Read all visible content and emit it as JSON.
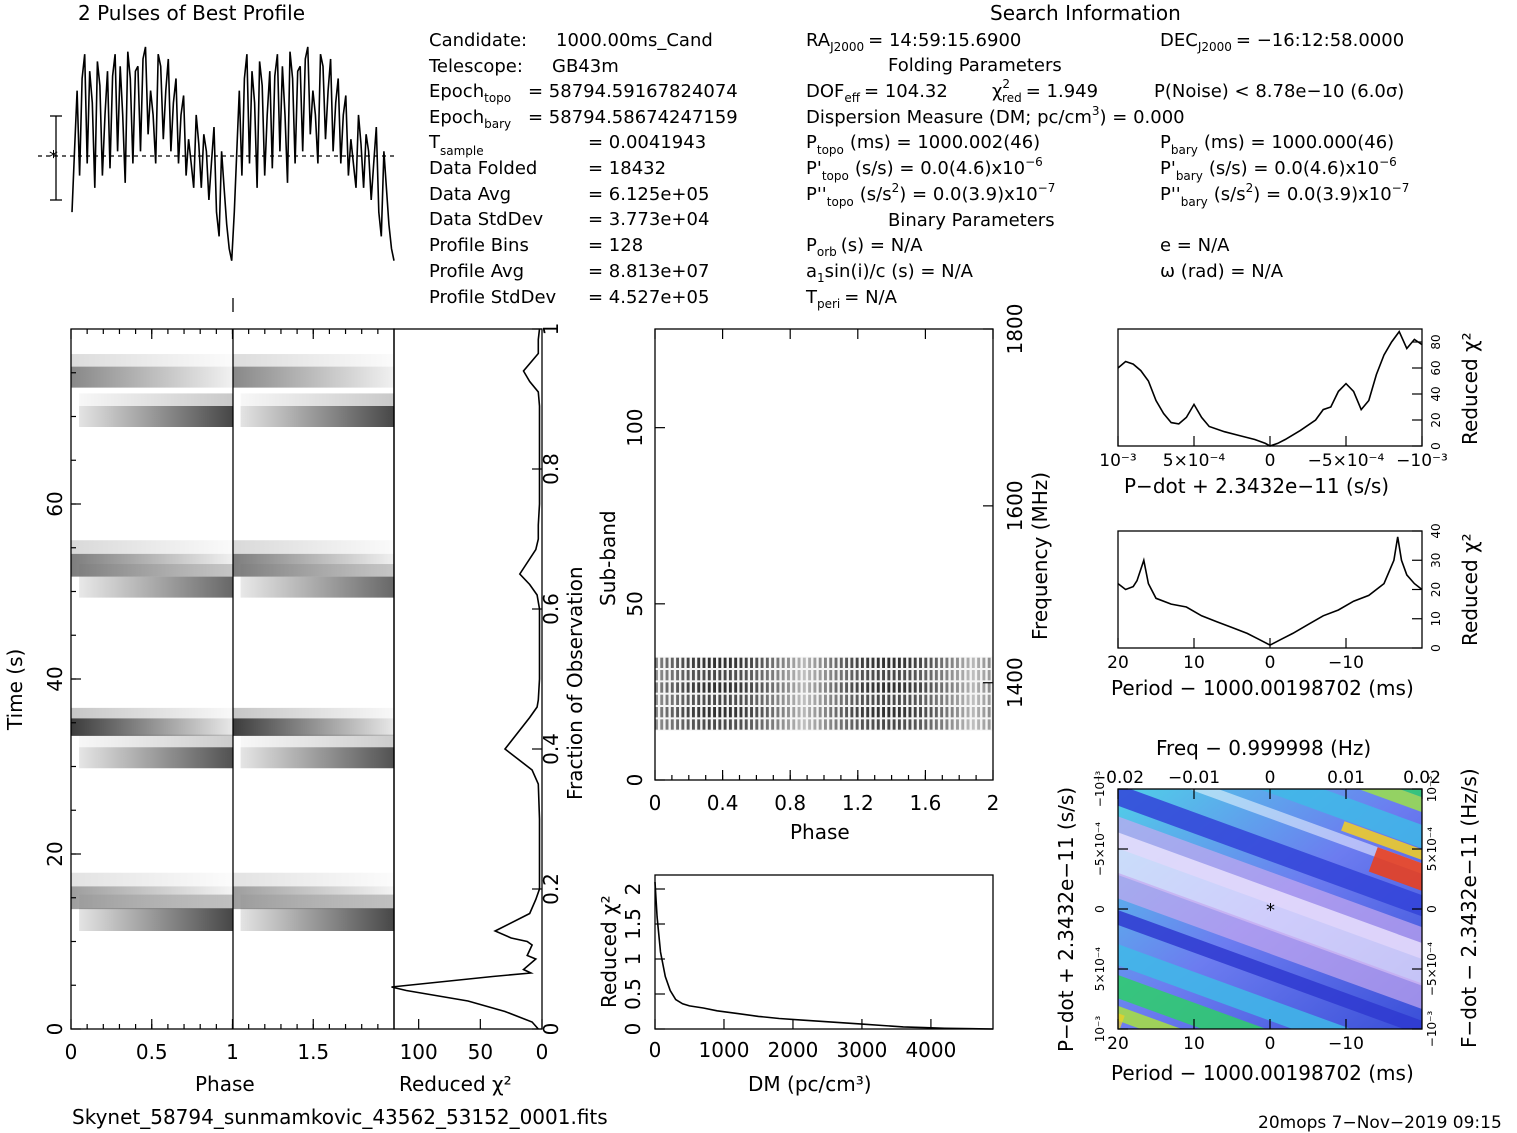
{
  "header": {
    "left_title": "2 Pulses of Best Profile",
    "right_title": "Search Information"
  },
  "info": {
    "candidate_label": "Candidate:",
    "candidate": "1000.00ms_Cand",
    "telescope_label": "Telescope:",
    "telescope": "GB43m",
    "epoch_topo_label": "Epoch",
    "epoch_topo_sub": "topo",
    "epoch_topo": "= 58794.59167824074",
    "epoch_bary_label": "Epoch",
    "epoch_bary_sub": "bary",
    "epoch_bary": "= 58794.58674247159",
    "tsample_label": "T",
    "tsample_sub": "sample",
    "tsample": "=   0.0041943",
    "data_folded_label": "Data Folded",
    "data_folded": "=   18432",
    "data_avg_label": "Data Avg",
    "data_avg": "=   6.125e+05",
    "data_std_label": "Data StdDev",
    "data_std": "=   3.773e+04",
    "prof_bins_label": "Profile Bins",
    "prof_bins": "=   128",
    "prof_avg_label": "Profile Avg",
    "prof_avg": "=   8.813e+07",
    "prof_std_label": "Profile StdDev",
    "prof_std": "=   4.527e+05"
  },
  "search": {
    "ra_label": "RA",
    "ra_sub": "J2000",
    "ra": "= 14:59:15.6900",
    "dec_label": "DEC",
    "dec_sub": "J2000",
    "dec": "= −16:12:58.0000",
    "folding_title": "Folding Parameters",
    "dof_label": "DOF",
    "dof_sub": "eff",
    "dof": "= 104.32",
    "chi_label": "χ",
    "chi_sup": "2",
    "chi_sub": "red",
    "chi": "= 1.949",
    "pnoise": "P(Noise) < 8.78e−10   (6.0σ)",
    "dm_a": "Dispersion Measure (DM; pc/cm",
    "dm_sup": "3",
    "dm_b": ") = 0.000",
    "ptopo_label": "P",
    "ptopo_sub": "topo",
    "ptopo": "(ms) =  1000.002(46)",
    "pbary_label": "P",
    "pbary_sub": "bary",
    "pbary": "(ms) =  1000.000(46)",
    "pdtopo_label": "P'",
    "pdtopo_sub": "topo",
    "pdtopo": "(s/s) = 0.0(4.6)x10",
    "pdtopo_sup": "−6",
    "pdbary_label": "P'",
    "pdbary_sub": "bary",
    "pdbary": "(s/s) = 0.0(4.6)x10",
    "pdbary_sup": "−6",
    "pddtopo_label": "P''",
    "pddtopo_sub": "topo",
    "pddtopo_a": "(s/s",
    "pddtopo_sup1": "2",
    "pddtopo_b": ") = 0.0(3.9)x10",
    "pddtopo_sup": "−7",
    "pddbary_label": "P''",
    "pddbary_sub": "bary",
    "pddbary_a": "(s/s",
    "pddbary_sup1": "2",
    "pddbary_b": ") = 0.0(3.9)x10",
    "pddbary_sup": "−7",
    "binary_title": "Binary Parameters",
    "porb_label": "P",
    "porb_sub": "orb",
    "porb": "(s) = N/A",
    "ecc": "e = N/A",
    "asini": "a",
    "asini_sub": "1",
    "asini_b": "sin(i)/c (s) = N/A",
    "omega": "ω (rad) = N/A",
    "tperi_label": "T",
    "tperi_sub": "peri",
    "tperi": "= N/A"
  },
  "footer": {
    "filename": "Skynet_58794_sunmamkovic_43562_53152_0001.fits",
    "stamp": "20mops   7−Nov−2019 09:15"
  },
  "chart_data": [
    {
      "type": "line",
      "name": "profile",
      "title": "2 Pulses of Best Profile",
      "x_range": [
        0,
        2
      ],
      "n_bins": 128,
      "pulses_per_turn": 8,
      "values_norm_description": "",
      "values": [
        0.3,
        0.55,
        0.8,
        0.45,
        0.85,
        0.95,
        0.5,
        0.88,
        0.75,
        0.4,
        0.92,
        0.82,
        0.45,
        0.7,
        0.88,
        0.48,
        0.86,
        0.95,
        0.55,
        0.9,
        0.7,
        0.42,
        0.96,
        0.85,
        0.5,
        0.88,
        0.9,
        0.55,
        0.93,
        0.98,
        0.62,
        0.8,
        0.7,
        0.5,
        0.95,
        0.9,
        0.6,
        0.8,
        0.93,
        0.55,
        0.75,
        0.85,
        0.5,
        0.7,
        0.78,
        0.45,
        0.6,
        0.5,
        0.4,
        0.7,
        0.58,
        0.4,
        0.62,
        0.55,
        0.35,
        0.5,
        0.65,
        0.3,
        0.2,
        0.55,
        0.4,
        0.25,
        0.15,
        0.1
      ]
    },
    {
      "type": "heatmap",
      "name": "time-phase",
      "xlabel": "Phase",
      "ylabel": "Time (s)",
      "xlim": [
        0,
        2
      ],
      "ylim": [
        0,
        80
      ],
      "xticks": [
        "0",
        "0.5",
        "1",
        "1.5"
      ],
      "yticks": [
        "0",
        "20",
        "40",
        "60"
      ],
      "bands": [
        {
          "t_center": 74.5,
          "phase_start": 0.0,
          "phase_end": 1.0,
          "width": 2.4,
          "darkness": 0.55
        },
        {
          "t_center": 70.0,
          "phase_start": 0.05,
          "phase_end": 1.0,
          "width": 2.4,
          "darkness": 0.85
        },
        {
          "t_center": 53.0,
          "phase_start": 0.0,
          "phase_end": 1.0,
          "width": 2.6,
          "darkness": 0.6
        },
        {
          "t_center": 50.5,
          "phase_start": 0.05,
          "phase_end": 1.0,
          "width": 2.4,
          "darkness": 0.7
        },
        {
          "t_center": 34.5,
          "phase_start": 0.0,
          "phase_end": 1.0,
          "width": 2.0,
          "darkness": 0.9
        },
        {
          "t_center": 31.0,
          "phase_start": 0.05,
          "phase_end": 1.0,
          "width": 2.4,
          "darkness": 0.8
        },
        {
          "t_center": 15.0,
          "phase_start": 0.0,
          "phase_end": 1.0,
          "width": 2.6,
          "darkness": 0.45
        },
        {
          "t_center": 12.5,
          "phase_start": 0.05,
          "phase_end": 1.0,
          "width": 2.6,
          "darkness": 0.85
        }
      ]
    },
    {
      "type": "line",
      "name": "reduced-chi2-vs-fraction",
      "xlabel": "Reduced χ²",
      "ylabel": "Fraction of Observation",
      "xlim": [
        120,
        0
      ],
      "ylim": [
        0,
        1
      ],
      "xticks": [
        "100",
        "50",
        "0"
      ],
      "yticks": [
        "0",
        "0.2",
        "0.4",
        "0.6",
        "0.8",
        "1"
      ],
      "points": [
        [
          2,
          1.0
        ],
        [
          3,
          0.985
        ],
        [
          3,
          0.965
        ],
        [
          15,
          0.94
        ],
        [
          10,
          0.925
        ],
        [
          3,
          0.91
        ],
        [
          2,
          0.89
        ],
        [
          2,
          0.85
        ],
        [
          2,
          0.8
        ],
        [
          2,
          0.75
        ],
        [
          3,
          0.72
        ],
        [
          3,
          0.7
        ],
        [
          5,
          0.685
        ],
        [
          18,
          0.65
        ],
        [
          10,
          0.635
        ],
        [
          4,
          0.62
        ],
        [
          2,
          0.6
        ],
        [
          2,
          0.55
        ],
        [
          2,
          0.5
        ],
        [
          3,
          0.47
        ],
        [
          4,
          0.46
        ],
        [
          10,
          0.445
        ],
        [
          30,
          0.4
        ],
        [
          8,
          0.37
        ],
        [
          3,
          0.35
        ],
        [
          2,
          0.3
        ],
        [
          2,
          0.25
        ],
        [
          2,
          0.2
        ],
        [
          5,
          0.185
        ],
        [
          10,
          0.165
        ],
        [
          38,
          0.14
        ],
        [
          25,
          0.13
        ],
        [
          12,
          0.125
        ],
        [
          8,
          0.12
        ],
        [
          12,
          0.105
        ],
        [
          5,
          0.1
        ],
        [
          15,
          0.085
        ],
        [
          9,
          0.08
        ],
        [
          40,
          0.075
        ],
        [
          122,
          0.06
        ],
        [
          110,
          0.055
        ],
        [
          60,
          0.04
        ],
        [
          30,
          0.025
        ],
        [
          8,
          0.01
        ],
        [
          3,
          0.0
        ]
      ]
    },
    {
      "type": "heatmap",
      "name": "subband-phase",
      "xlabel": "Phase",
      "ylabel": "Sub-band",
      "y2label": "Frequency (MHz)",
      "xlim": [
        0,
        2
      ],
      "ylim": [
        0,
        128
      ],
      "xticks": [
        "0",
        "0.4",
        "0.8",
        "1.2",
        "1.6",
        "2"
      ],
      "yticks": [
        "0",
        "50",
        "100"
      ],
      "y2ticks": [
        "1400",
        "1600",
        "1800"
      ],
      "y2lim": [
        1290,
        1800
      ],
      "active_subbands": [
        14,
        35
      ]
    },
    {
      "type": "line",
      "name": "chi2-vs-dm",
      "xlabel": "DM (pc/cm³)",
      "ylabel": "Reduced χ²",
      "xlim": [
        0,
        4900
      ],
      "ylim": [
        0,
        2.2
      ],
      "xticks": [
        "0",
        "1000",
        "2000",
        "3000",
        "4000"
      ],
      "yticks": [
        "0",
        "0.5",
        "1",
        "1.5",
        "2"
      ],
      "points": [
        [
          0,
          2.1
        ],
        [
          30,
          1.6
        ],
        [
          80,
          1.1
        ],
        [
          150,
          0.75
        ],
        [
          220,
          0.55
        ],
        [
          300,
          0.42
        ],
        [
          400,
          0.36
        ],
        [
          500,
          0.33
        ],
        [
          700,
          0.3
        ],
        [
          900,
          0.26
        ],
        [
          1200,
          0.22
        ],
        [
          1500,
          0.18
        ],
        [
          1800,
          0.15
        ],
        [
          2100,
          0.13
        ],
        [
          2400,
          0.11
        ],
        [
          2700,
          0.09
        ],
        [
          3000,
          0.07
        ],
        [
          3300,
          0.05
        ],
        [
          3600,
          0.03
        ],
        [
          3900,
          0.02
        ],
        [
          4200,
          0.01
        ],
        [
          4600,
          0.005
        ],
        [
          4900,
          0.0
        ]
      ]
    },
    {
      "type": "line",
      "name": "chi2-vs-pdot",
      "xlabel": "P−dot + 2.3432e−11 (s/s)",
      "ylabel": "Reduced χ²",
      "xlim": [
        0.001,
        -0.001
      ],
      "ylim": [
        0,
        90
      ],
      "xticks": [
        "10⁻³",
        "5×10⁻⁴",
        "0",
        "−5×10⁻⁴",
        "−10⁻³"
      ],
      "yticks": [
        "0",
        "20",
        "40",
        "60",
        "80"
      ],
      "points": [
        [
          0.001,
          60
        ],
        [
          0.00095,
          65
        ],
        [
          0.0009,
          63
        ],
        [
          0.00085,
          58
        ],
        [
          0.0008,
          50
        ],
        [
          0.00075,
          35
        ],
        [
          0.0007,
          25
        ],
        [
          0.00065,
          18
        ],
        [
          0.0006,
          17
        ],
        [
          0.00055,
          22
        ],
        [
          0.0005,
          32
        ],
        [
          0.00045,
          22
        ],
        [
          0.0004,
          15
        ],
        [
          0.0003,
          11
        ],
        [
          0.0002,
          8
        ],
        [
          0.0001,
          5
        ],
        [
          3e-05,
          2
        ],
        [
          0,
          0
        ],
        [
          -5e-05,
          2
        ],
        [
          -0.0001,
          5
        ],
        [
          -0.0002,
          12
        ],
        [
          -0.0003,
          20
        ],
        [
          -0.00035,
          28
        ],
        [
          -0.0004,
          30
        ],
        [
          -0.00045,
          42
        ],
        [
          -0.0005,
          48
        ],
        [
          -0.00055,
          42
        ],
        [
          -0.0006,
          28
        ],
        [
          -0.00065,
          35
        ],
        [
          -0.0007,
          55
        ],
        [
          -0.00075,
          70
        ],
        [
          -0.0008,
          80
        ],
        [
          -0.00085,
          88
        ],
        [
          -0.0009,
          75
        ],
        [
          -0.00095,
          82
        ],
        [
          -0.001,
          78
        ]
      ]
    },
    {
      "type": "line",
      "name": "chi2-vs-period",
      "xlabel": "Period − 1000.00198702 (ms)",
      "ylabel": "Reduced χ²",
      "xlim": [
        20,
        -20
      ],
      "ylim": [
        0,
        40
      ],
      "xticks": [
        "20",
        "10",
        "0",
        "−10"
      ],
      "yticks": [
        "0",
        "10",
        "20",
        "30",
        "40"
      ],
      "points": [
        [
          20,
          22
        ],
        [
          19,
          20
        ],
        [
          18,
          21
        ],
        [
          17.5,
          23
        ],
        [
          16.6,
          30
        ],
        [
          16,
          22
        ],
        [
          15,
          17
        ],
        [
          13,
          15
        ],
        [
          11,
          14
        ],
        [
          9,
          11
        ],
        [
          7,
          9
        ],
        [
          5,
          7
        ],
        [
          3,
          5
        ],
        [
          1.5,
          3
        ],
        [
          0,
          1
        ],
        [
          -1.5,
          3
        ],
        [
          -3,
          5
        ],
        [
          -5,
          8
        ],
        [
          -7,
          11
        ],
        [
          -9,
          13
        ],
        [
          -11,
          16
        ],
        [
          -13,
          18
        ],
        [
          -15,
          22
        ],
        [
          -16.3,
          30
        ],
        [
          -16.8,
          38
        ],
        [
          -17.3,
          30
        ],
        [
          -18,
          25
        ],
        [
          -19,
          22
        ],
        [
          -20,
          20
        ]
      ]
    },
    {
      "type": "heatmap",
      "name": "period-pdot-plane",
      "title": "Freq − 0.999998 (Hz)",
      "xlabel": "Period − 1000.00198702 (ms)",
      "ylabel": "P−dot + 2.3432e−11 (s/s)",
      "y2label": "F−dot − 2.3432e−11 (Hz/s)",
      "xlim": [
        20,
        -20
      ],
      "x2lim": [
        -0.02,
        0.02
      ],
      "xticks": [
        "20",
        "10",
        "0",
        "−10"
      ],
      "x2ticks": [
        "−0.02",
        "−0.01",
        "0",
        "0.01",
        "0.02"
      ],
      "yticks": [
        "10⁻³",
        "5×10⁻⁴",
        "0",
        "−5×10⁻⁴",
        "−10⁻³"
      ],
      "y2ticks": [
        "−10⁻³",
        "−5×10⁻⁴",
        "0",
        "5×10⁻⁴",
        "10⁻³"
      ],
      "best": [
        0,
        0
      ]
    }
  ]
}
